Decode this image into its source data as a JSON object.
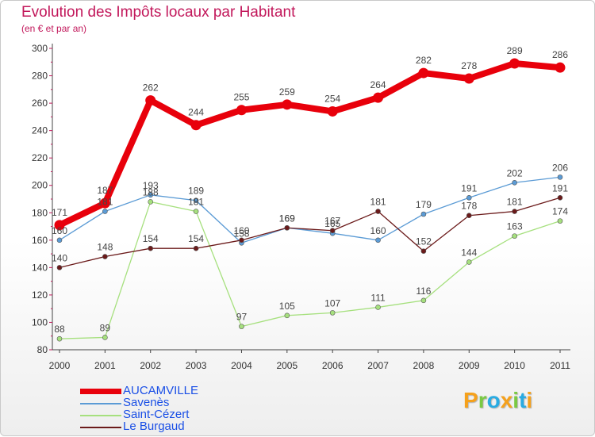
{
  "title": "Evolution des Impôts locaux par Habitant",
  "subtitle": "(en € et par an)",
  "brand": {
    "text": "Proxiti",
    "colors": [
      "#f5a11c",
      "#7ac943",
      "#29abe2",
      "#f5a11c",
      "#7ac943",
      "#29abe2",
      "#f5a11c"
    ]
  },
  "chart_data": {
    "type": "line",
    "x": [
      "2000",
      "2001",
      "2002",
      "2003",
      "2004",
      "2005",
      "2006",
      "2007",
      "2008",
      "2009",
      "2010",
      "2011"
    ],
    "ylim": [
      80,
      300
    ],
    "yticks": [
      "80",
      "100",
      "120",
      "140",
      "160",
      "180",
      "200",
      "220",
      "240",
      "260",
      "280",
      "300"
    ],
    "grid": false,
    "legend_position": "bottom-left",
    "series": [
      {
        "name": "AUCAMVILLE",
        "color": "#e8000b",
        "values": [
          171,
          187,
          262,
          244,
          255,
          259,
          254,
          264,
          282,
          278,
          289,
          286
        ],
        "labels": [
          "171",
          "187",
          "262",
          "244",
          "255",
          "259",
          "254",
          "264",
          "282",
          "278",
          "289",
          "286"
        ]
      },
      {
        "name": "Savenès",
        "color": "#5b9bd5",
        "values": [
          160,
          181,
          193,
          189,
          158,
          169,
          165,
          160,
          179,
          191,
          202,
          206
        ],
        "labels": [
          "160",
          "181",
          "193",
          "189",
          "158",
          "169",
          "165",
          "160",
          "179",
          "191",
          "202",
          "206"
        ]
      },
      {
        "name": "Saint-Cézert",
        "color": "#a6e07e",
        "values": [
          88,
          89,
          188,
          181,
          97,
          105,
          107,
          111,
          116,
          144,
          163,
          174
        ],
        "labels": [
          "88",
          "89",
          "188",
          "181",
          "97",
          "105",
          "107",
          "111",
          "116",
          "144",
          "163",
          "174"
        ]
      },
      {
        "name": "Le Burgaud",
        "color": "#6b1a1a",
        "values": [
          140,
          148,
          154,
          154,
          160,
          169,
          167,
          181,
          152,
          178,
          181,
          191
        ],
        "labels": [
          "140",
          "148",
          "154",
          "154",
          "160",
          "169",
          "167",
          "181",
          "152",
          "178",
          "181",
          "191"
        ]
      }
    ]
  }
}
